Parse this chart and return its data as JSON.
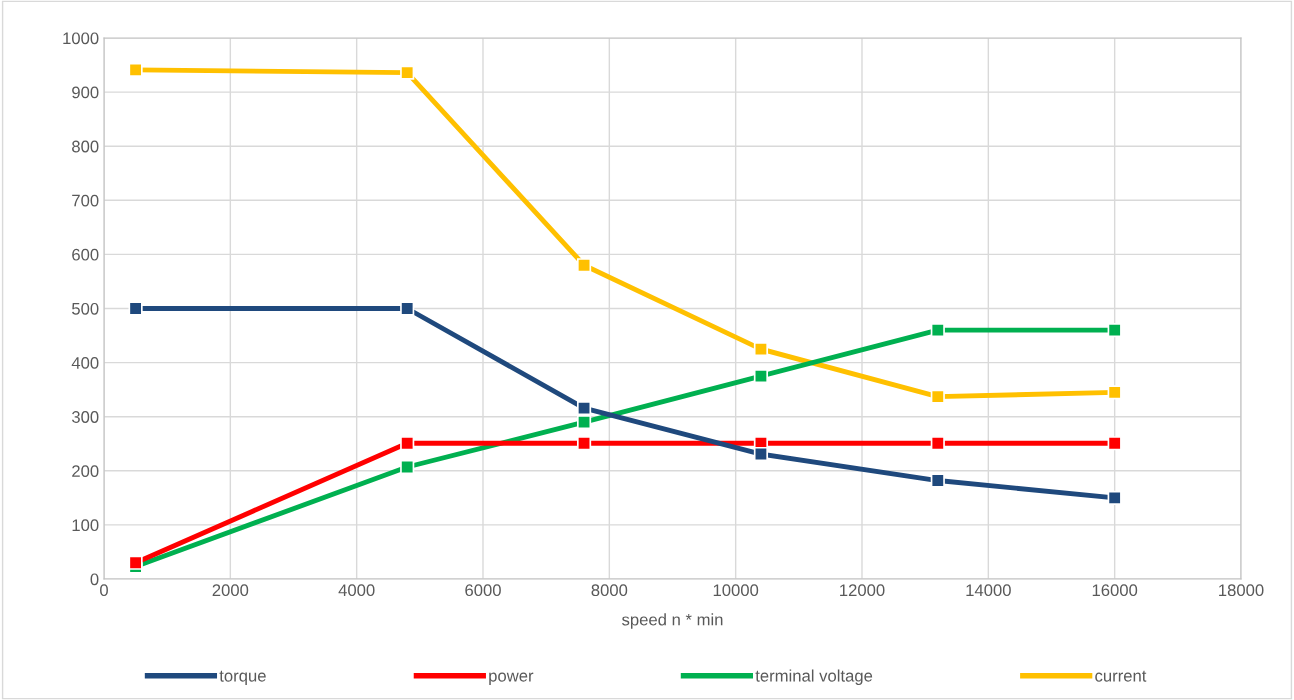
{
  "chart_data": {
    "type": "line",
    "xlabel": "speed n * min",
    "x": [
      500,
      4800,
      7600,
      10400,
      13200,
      16000
    ],
    "series": [
      {
        "name": "torque",
        "color": "#1f497d",
        "values": [
          500,
          500,
          316,
          231,
          182,
          150
        ]
      },
      {
        "name": "power",
        "color": "#ff0000",
        "values": [
          30,
          251,
          251,
          251,
          251,
          251
        ]
      },
      {
        "name": "terminal voltage",
        "color": "#00b050",
        "values": [
          23,
          207,
          290,
          375,
          460,
          460
        ]
      },
      {
        "name": "current",
        "color": "#ffc000",
        "values": [
          941,
          936,
          580,
          425,
          337,
          345
        ]
      }
    ],
    "xlim": [
      0,
      18000
    ],
    "xticks": [
      0,
      2000,
      4000,
      6000,
      8000,
      10000,
      12000,
      14000,
      16000,
      18000
    ],
    "ylim": [
      0,
      1000
    ],
    "yticks": [
      0,
      100,
      200,
      300,
      400,
      500,
      600,
      700,
      800,
      900,
      1000
    ],
    "grid": true,
    "legend": "bottom",
    "marker": "square",
    "line_style": "solid"
  }
}
